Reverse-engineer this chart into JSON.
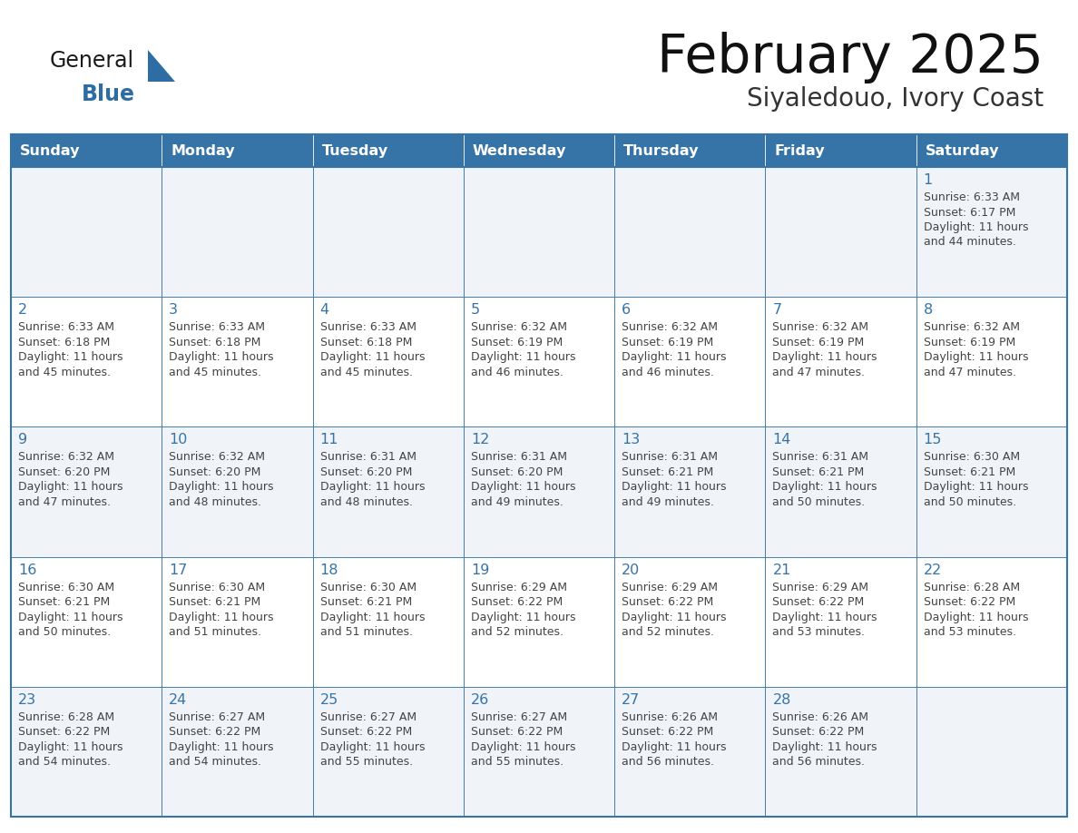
{
  "title": "February 2025",
  "subtitle": "Siyaledouo, Ivory Coast",
  "days_of_week": [
    "Sunday",
    "Monday",
    "Tuesday",
    "Wednesday",
    "Thursday",
    "Friday",
    "Saturday"
  ],
  "header_bg": "#3674A8",
  "header_text_color": "#FFFFFF",
  "border_color": "#3674A8",
  "day_num_color": "#3674A8",
  "text_color": "#444444",
  "row_bg_even": "#F0F4F8",
  "row_bg_odd": "#FFFFFF",
  "calendar_data": [
    [
      {
        "day": null,
        "sunrise": null,
        "sunset": null,
        "daylight_min": null
      },
      {
        "day": null,
        "sunrise": null,
        "sunset": null,
        "daylight_min": null
      },
      {
        "day": null,
        "sunrise": null,
        "sunset": null,
        "daylight_min": null
      },
      {
        "day": null,
        "sunrise": null,
        "sunset": null,
        "daylight_min": null
      },
      {
        "day": null,
        "sunrise": null,
        "sunset": null,
        "daylight_min": null
      },
      {
        "day": null,
        "sunrise": null,
        "sunset": null,
        "daylight_min": null
      },
      {
        "day": 1,
        "sunrise": "6:33 AM",
        "sunset": "6:17 PM",
        "daylight_min": 44
      }
    ],
    [
      {
        "day": 2,
        "sunrise": "6:33 AM",
        "sunset": "6:18 PM",
        "daylight_min": 45
      },
      {
        "day": 3,
        "sunrise": "6:33 AM",
        "sunset": "6:18 PM",
        "daylight_min": 45
      },
      {
        "day": 4,
        "sunrise": "6:33 AM",
        "sunset": "6:18 PM",
        "daylight_min": 45
      },
      {
        "day": 5,
        "sunrise": "6:32 AM",
        "sunset": "6:19 PM",
        "daylight_min": 46
      },
      {
        "day": 6,
        "sunrise": "6:32 AM",
        "sunset": "6:19 PM",
        "daylight_min": 46
      },
      {
        "day": 7,
        "sunrise": "6:32 AM",
        "sunset": "6:19 PM",
        "daylight_min": 47
      },
      {
        "day": 8,
        "sunrise": "6:32 AM",
        "sunset": "6:19 PM",
        "daylight_min": 47
      }
    ],
    [
      {
        "day": 9,
        "sunrise": "6:32 AM",
        "sunset": "6:20 PM",
        "daylight_min": 47
      },
      {
        "day": 10,
        "sunrise": "6:32 AM",
        "sunset": "6:20 PM",
        "daylight_min": 48
      },
      {
        "day": 11,
        "sunrise": "6:31 AM",
        "sunset": "6:20 PM",
        "daylight_min": 48
      },
      {
        "day": 12,
        "sunrise": "6:31 AM",
        "sunset": "6:20 PM",
        "daylight_min": 49
      },
      {
        "day": 13,
        "sunrise": "6:31 AM",
        "sunset": "6:21 PM",
        "daylight_min": 49
      },
      {
        "day": 14,
        "sunrise": "6:31 AM",
        "sunset": "6:21 PM",
        "daylight_min": 50
      },
      {
        "day": 15,
        "sunrise": "6:30 AM",
        "sunset": "6:21 PM",
        "daylight_min": 50
      }
    ],
    [
      {
        "day": 16,
        "sunrise": "6:30 AM",
        "sunset": "6:21 PM",
        "daylight_min": 50
      },
      {
        "day": 17,
        "sunrise": "6:30 AM",
        "sunset": "6:21 PM",
        "daylight_min": 51
      },
      {
        "day": 18,
        "sunrise": "6:30 AM",
        "sunset": "6:21 PM",
        "daylight_min": 51
      },
      {
        "day": 19,
        "sunrise": "6:29 AM",
        "sunset": "6:22 PM",
        "daylight_min": 52
      },
      {
        "day": 20,
        "sunrise": "6:29 AM",
        "sunset": "6:22 PM",
        "daylight_min": 52
      },
      {
        "day": 21,
        "sunrise": "6:29 AM",
        "sunset": "6:22 PM",
        "daylight_min": 53
      },
      {
        "day": 22,
        "sunrise": "6:28 AM",
        "sunset": "6:22 PM",
        "daylight_min": 53
      }
    ],
    [
      {
        "day": 23,
        "sunrise": "6:28 AM",
        "sunset": "6:22 PM",
        "daylight_min": 54
      },
      {
        "day": 24,
        "sunrise": "6:27 AM",
        "sunset": "6:22 PM",
        "daylight_min": 54
      },
      {
        "day": 25,
        "sunrise": "6:27 AM",
        "sunset": "6:22 PM",
        "daylight_min": 55
      },
      {
        "day": 26,
        "sunrise": "6:27 AM",
        "sunset": "6:22 PM",
        "daylight_min": 55
      },
      {
        "day": 27,
        "sunrise": "6:26 AM",
        "sunset": "6:22 PM",
        "daylight_min": 56
      },
      {
        "day": 28,
        "sunrise": "6:26 AM",
        "sunset": "6:22 PM",
        "daylight_min": 56
      },
      {
        "day": null,
        "sunrise": null,
        "sunset": null,
        "daylight_min": null
      }
    ]
  ]
}
